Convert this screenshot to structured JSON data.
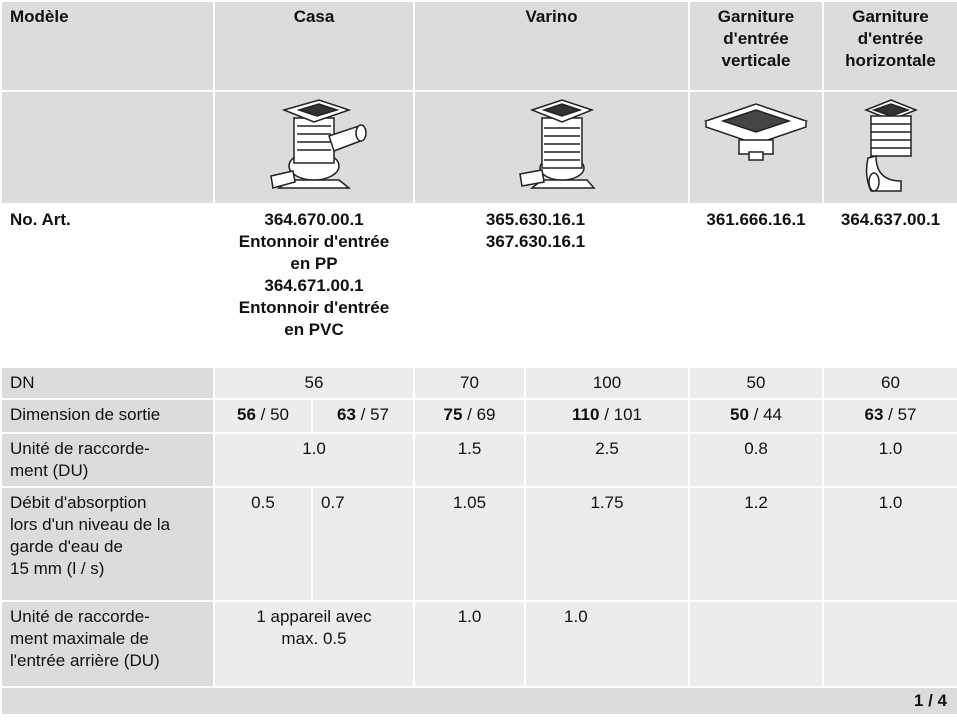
{
  "header": {
    "model": "Modèle",
    "casa": "Casa",
    "varino": "Varino",
    "vertical": [
      "Garniture",
      "d'entrée",
      "verticale"
    ],
    "horizontal": [
      "Garniture",
      "d'entrée",
      "horizontale"
    ]
  },
  "article": {
    "label": "No. Art.",
    "casa": [
      "364.670.00.1",
      "Entonnoir d'entrée",
      "en PP",
      "364.671.00.1",
      "Entonnoir d'entrée",
      "en PVC"
    ],
    "varino": [
      "365.630.16.1",
      "367.630.16.1"
    ],
    "vertical": "361.666.16.1",
    "horizontal": "364.637.00.1"
  },
  "dn": {
    "label": "DN",
    "cells": [
      "56",
      "70",
      "100",
      "50",
      "60"
    ]
  },
  "outlet": {
    "label": "Dimension de sortie",
    "cells": [
      {
        "bold": "56",
        "text": "/ 50"
      },
      {
        "bold": "63",
        "text": "/ 57"
      },
      {
        "bold": "75",
        "text": "/ 69"
      },
      {
        "bold": "110",
        "text": "/ 101"
      },
      {
        "bold": "50",
        "text": "/ 44"
      },
      {
        "bold": "63",
        "text": "/ 57"
      }
    ]
  },
  "du": {
    "label": [
      "Unité de raccorde-",
      "ment (DU)"
    ],
    "cells": [
      "1.0",
      "1.5",
      "2.5",
      "0.8",
      "1.0"
    ]
  },
  "flow": {
    "label": [
      "Débit d'absorption",
      "lors d'un niveau de la",
      "garde d'eau de",
      "15 mm (l / s)"
    ],
    "cells": [
      "0.5",
      "0.7",
      "1.05",
      "1.75",
      "1.2",
      "1.0"
    ]
  },
  "du_max": {
    "label": [
      "Unité de raccorde-",
      "ment maximale de",
      "l'entrée arrière (DU)"
    ],
    "cells": [
      "1 appareil avec max. 0.5",
      "1.0",
      "1.0"
    ]
  },
  "footer": {
    "page": "1 / 4"
  }
}
